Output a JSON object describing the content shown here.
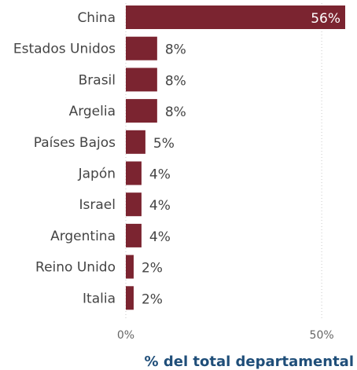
{
  "chart_data": {
    "type": "bar",
    "orientation": "horizontal",
    "categories": [
      "China",
      "Estados Unidos",
      "Brasil",
      "Argelia",
      "Países Bajos",
      "Japón",
      "Israel",
      "Argentina",
      "Reino Unido",
      "Italia"
    ],
    "values": [
      56,
      8,
      8,
      8,
      5,
      4,
      4,
      4,
      2,
      2
    ],
    "value_labels": [
      "56%",
      "8%",
      "8%",
      "8%",
      "5%",
      "4%",
      "4%",
      "4%",
      "2%",
      "2%"
    ],
    "title": "",
    "xlabel": "% del total departamental",
    "ylabel": "",
    "xlim": [
      0,
      56
    ],
    "x_ticks": [
      0,
      50
    ],
    "x_tick_labels": [
      "0%",
      "50%"
    ],
    "grid": "vertical-dotted",
    "legend": "none",
    "colors": {
      "bar": "#7b2430",
      "xlabel": "#1f4e79"
    }
  }
}
